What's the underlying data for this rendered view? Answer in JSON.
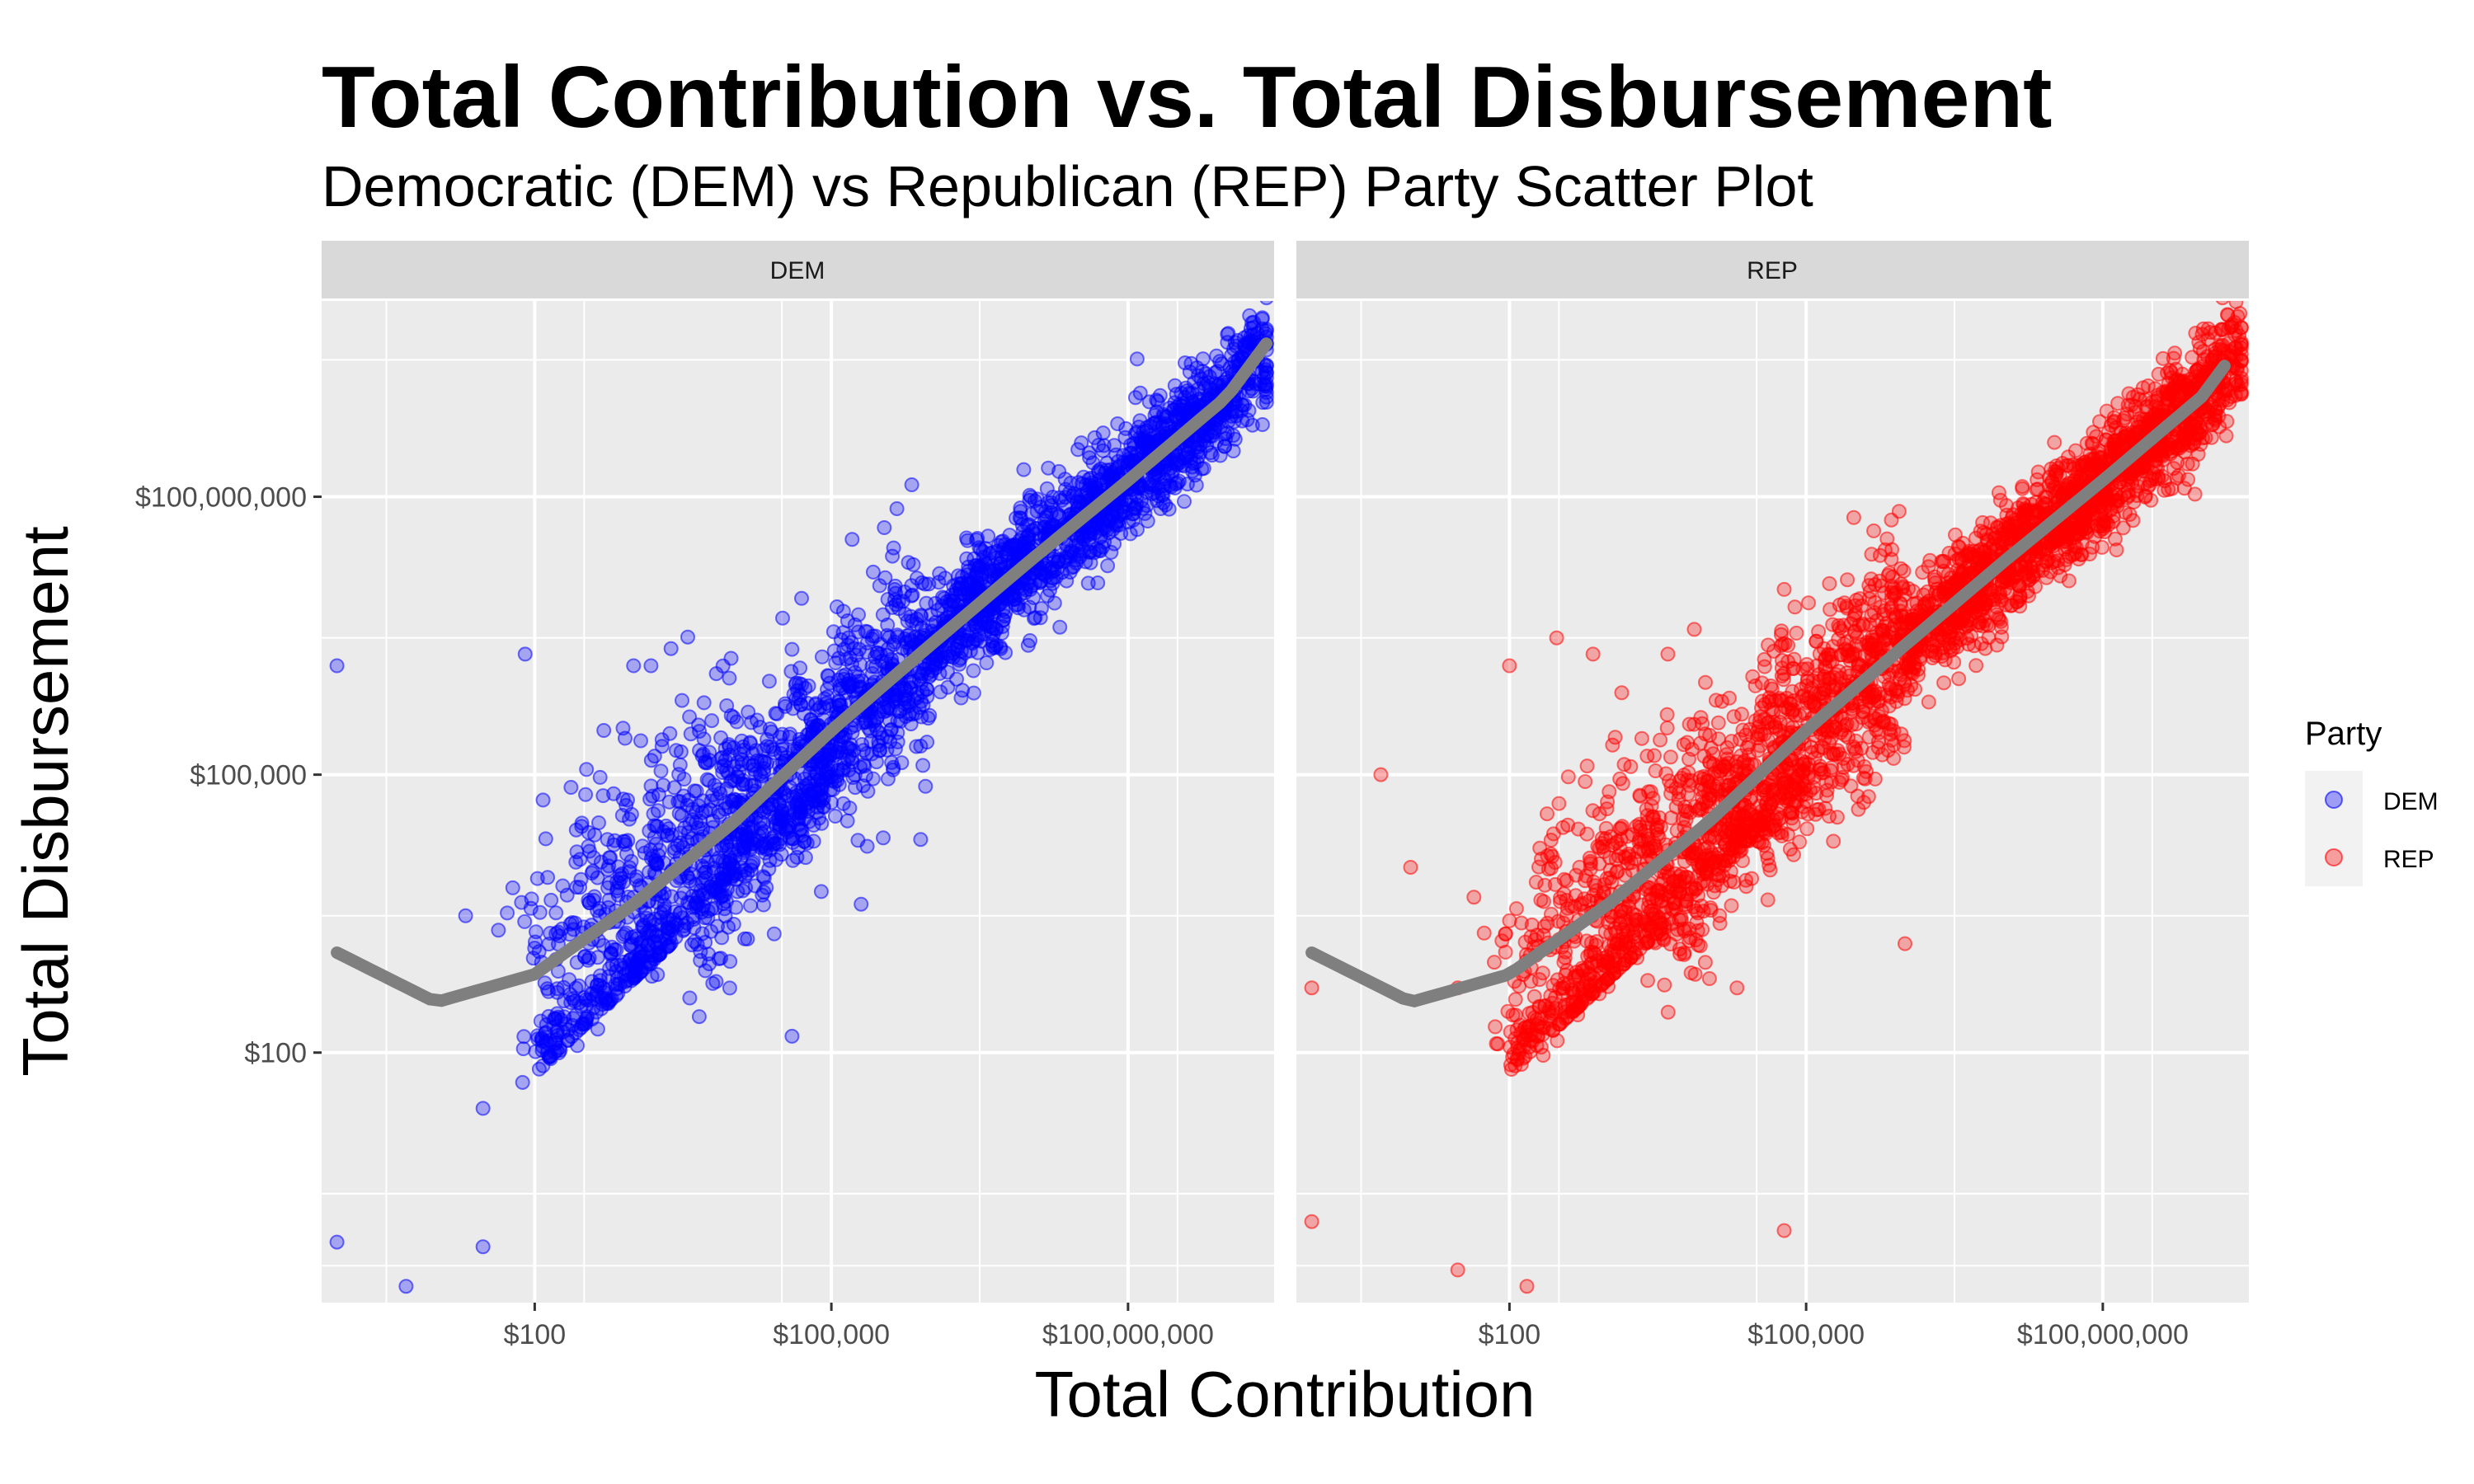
{
  "title": "Total Contribution vs. Total Disbursement",
  "subtitle": "Democratic (DEM) vs Republican (REP) Party Scatter Plot",
  "chart_data": {
    "type": "scatter",
    "xlabel": "Total Contribution",
    "ylabel": "Total Disbursement",
    "x_scale": "log10",
    "y_scale": "log10",
    "xlim": [
      0.7,
      3000000000
    ],
    "ylim": [
      0.2,
      13000000000
    ],
    "x_ticks": [
      100,
      100000,
      100000000
    ],
    "x_tick_labels": [
      "$100",
      "$100,000",
      "$100,000,000"
    ],
    "y_ticks": [
      100,
      100000,
      100000000
    ],
    "y_tick_labels": [
      "$100",
      "$100,000",
      "$100,000,000"
    ],
    "grid": true,
    "facets": [
      "DEM",
      "REP"
    ],
    "legend": {
      "title": "Party",
      "position": "right",
      "entries": [
        {
          "label": "DEM",
          "color": "#0000ff"
        },
        {
          "label": "REP",
          "color": "#ff0000"
        }
      ]
    },
    "trend": {
      "color": "#7f7f7f",
      "points": [
        [
          1,
          1200
        ],
        [
          10,
          350
        ],
        [
          100,
          700
        ],
        [
          1000,
          4000
        ],
        [
          10000,
          30000
        ],
        [
          100000,
          300000
        ],
        [
          1000000,
          2500000
        ],
        [
          10000000,
          20000000
        ],
        [
          100000000,
          150000000
        ],
        [
          1000000000,
          1200000000
        ],
        [
          2500000000,
          4500000000
        ]
      ]
    },
    "series": [
      {
        "name": "DEM",
        "color": "#0000ff",
        "outliers": [
          [
            1,
            1500000
          ],
          [
            1,
            0.9
          ],
          [
            5,
            0.3
          ],
          [
            30,
            0.8
          ],
          [
            30,
            25
          ],
          [
            20,
            3000
          ],
          [
            60,
            6000
          ],
          [
            80,
            2000000
          ],
          [
            300,
            30000
          ],
          [
            500,
            300000
          ],
          [
            700,
            5000
          ],
          [
            1000,
            1500000
          ],
          [
            1500,
            1500000
          ],
          [
            3000,
            8000
          ],
          [
            20000,
            5000
          ],
          [
            40000,
            150
          ],
          [
            50000,
            8000000
          ],
          [
            100000,
            50000
          ],
          [
            200000,
            4000
          ],
          [
            800000,
            20000
          ],
          [
            2000000,
            10000000
          ],
          [
            10000000,
            50000000
          ],
          [
            30000000,
            100000000
          ],
          [
            1500000000,
            3500000000
          ]
        ]
      },
      {
        "name": "REP",
        "color": "#ff0000",
        "outliers": [
          [
            1,
            1.5
          ],
          [
            1,
            500
          ],
          [
            10,
            10000
          ],
          [
            5,
            100000
          ],
          [
            30,
            500
          ],
          [
            30,
            0.45
          ],
          [
            100,
            1500000
          ],
          [
            150,
            0.3
          ],
          [
            300,
            3000000
          ],
          [
            700,
            2000000
          ],
          [
            1500,
            5000
          ],
          [
            2500,
            600
          ],
          [
            4000,
            2000000
          ],
          [
            20000,
            500
          ],
          [
            60000,
            1.2
          ],
          [
            60000,
            10000000
          ],
          [
            300000,
            200000
          ],
          [
            800000,
            3000000
          ],
          [
            1000000,
            1500
          ],
          [
            10000000,
            40000000
          ],
          [
            30000000,
            200000000
          ],
          [
            200000000,
            200000000
          ],
          [
            1200000000,
            2500000000
          ]
        ]
      }
    ]
  }
}
